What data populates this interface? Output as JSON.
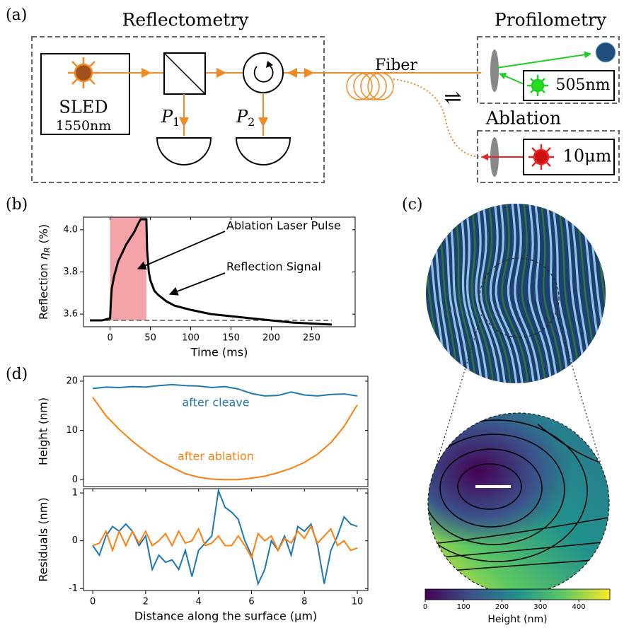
{
  "panel_labels": [
    "(a)",
    "(b)",
    "(c)",
    "(d)"
  ],
  "diagram": {
    "reflectometry": "Reflectometry",
    "profilometry": "Profilometry",
    "ablation": "Ablation",
    "fiber": "Fiber",
    "sled": "SLED",
    "sled_wavelength": "1550nm",
    "p1": {
      "symbol": "P",
      "subscript": "1"
    },
    "p2": {
      "symbol": "P",
      "subscript": "2"
    },
    "green_laser": "505nm",
    "red_laser": "10μm"
  },
  "chart_data": [
    {
      "type": "line",
      "xlabel": "Time (ms)",
      "ylabel": {
        "text": "Reflection ",
        "symbol": "η",
        "subscript": "R",
        "unit": " (%)"
      },
      "xlim": [
        -33,
        304
      ],
      "ylim": [
        3.54,
        4.06
      ],
      "xticks": [
        0,
        50,
        100,
        150,
        200,
        250
      ],
      "yticks": [
        3.6,
        3.8,
        {
          "value": 4,
          "label": "4.0"
        }
      ],
      "span": {
        "x": [
          0,
          45
        ],
        "y": [
          3.57,
          4.06
        ],
        "color": "#f4a3a8"
      },
      "annotations": [
        "Ablation Laser Pulse",
        "Reflection Signal"
      ],
      "series": [
        {
          "color": "#808080",
          "dash": true,
          "x": [
            -25,
            275
          ],
          "values": [
            3.57,
            3.57
          ]
        },
        {
          "color": "#000000",
          "x": [
            -25,
            -10,
            0,
            1,
            2,
            5,
            10,
            15,
            20,
            25,
            30,
            35,
            38,
            42,
            45,
            46,
            48,
            50,
            55,
            60,
            70,
            80,
            100,
            125,
            150,
            175,
            200,
            225,
            250,
            275
          ],
          "values": [
            3.57,
            3.57,
            3.58,
            3.66,
            3.72,
            3.78,
            3.85,
            3.89,
            3.93,
            3.96,
            3.99,
            4.03,
            4.05,
            4.05,
            4.05,
            3.9,
            3.8,
            3.76,
            3.71,
            3.69,
            3.66,
            3.64,
            3.62,
            3.6,
            3.59,
            3.58,
            3.57,
            3.56,
            3.555,
            3.55
          ]
        }
      ]
    },
    {
      "type": "line",
      "ylabel": "Height (nm)",
      "xlim": [
        -0.35,
        10.4
      ],
      "ylim": [
        -1.4,
        21
      ],
      "yticks": [
        0,
        10,
        20
      ],
      "x": [
        0,
        0.5,
        1,
        1.5,
        2,
        2.5,
        3,
        3.5,
        4,
        4.5,
        5,
        5.5,
        6,
        6.5,
        7,
        7.5,
        8,
        8.5,
        9,
        9.5,
        10
      ],
      "series": [
        {
          "name": "after cleave",
          "color": "#1f77b4",
          "values": [
            18.5,
            18.8,
            18.7,
            18.9,
            18.8,
            19.1,
            19.3,
            19.1,
            19.0,
            18.7,
            18.9,
            18.4,
            17.5,
            17.0,
            17.1,
            17.8,
            17.2,
            17.0,
            17.3,
            17.4,
            17.0
          ]
        },
        {
          "name": "after ablation",
          "color": "#ff7f0e",
          "values": [
            16.7,
            13.0,
            10.2,
            7.8,
            5.7,
            3.9,
            2.5,
            1.2,
            0.5,
            0.1,
            0.0,
            0.0,
            0.3,
            0.7,
            1.4,
            2.3,
            3.5,
            5.2,
            7.5,
            10.8,
            15.2
          ]
        }
      ]
    },
    {
      "type": "line",
      "xlabel": "Distance along the surface (μm)",
      "ylabel": "Residuals (nm)",
      "xlim": [
        -0.35,
        10.4
      ],
      "ylim": [
        -1.04,
        1.09
      ],
      "xticks": [
        0,
        2,
        4,
        6,
        8,
        10
      ],
      "yticks": [
        -1,
        0,
        1
      ],
      "x": [
        0,
        0.25,
        0.5,
        0.75,
        1,
        1.25,
        1.5,
        1.75,
        2,
        2.25,
        2.5,
        2.75,
        3,
        3.25,
        3.5,
        3.75,
        4,
        4.25,
        4.5,
        4.75,
        5,
        5.25,
        5.5,
        5.75,
        6,
        6.25,
        6.5,
        6.75,
        7,
        7.25,
        7.5,
        7.75,
        8,
        8.25,
        8.5,
        8.75,
        9,
        9.25,
        9.5,
        9.75,
        10
      ],
      "series": [
        {
          "color": "#1f77b4",
          "values": [
            -0.1,
            -0.3,
            0.1,
            0.3,
            0.2,
            0.35,
            0.2,
            -0.1,
            0.1,
            -0.6,
            -0.3,
            -0.45,
            -0.4,
            -0.6,
            -0.2,
            -0.75,
            -0.2,
            -0.05,
            0.1,
            1.05,
            0.7,
            0.6,
            0.45,
            0.0,
            -0.3,
            -0.9,
            -0.6,
            0.0,
            -0.2,
            0.1,
            -0.3,
            0.3,
            0.2,
            0.35,
            -0.1,
            -0.9,
            -0.2,
            0.1,
            0.5,
            0.35,
            0.3
          ]
        },
        {
          "color": "#ff7f0e",
          "values": [
            -0.1,
            -0.05,
            0.2,
            -0.2,
            0.2,
            -0.1,
            0.2,
            -0.05,
            0.2,
            -0.1,
            0.0,
            0.15,
            -0.1,
            0.2,
            -0.05,
            0.0,
            0.25,
            -0.1,
            -0.05,
            0.1,
            -0.1,
            -0.1,
            0.1,
            -0.1,
            -0.35,
            0.15,
            0.0,
            0.1,
            -0.2,
            0.05,
            -0.05,
            0.2,
            0.05,
            0.3,
            -0.05,
            0.1,
            0.25,
            -0.1,
            0.0,
            -0.2,
            -0.15
          ]
        }
      ]
    },
    {
      "type": "colorbar",
      "xlabel": "Height (nm)",
      "xlim": [
        0,
        481
      ],
      "xticks": [
        0,
        100,
        200,
        300,
        400
      ],
      "colormap": [
        "#440154",
        "#3b528b",
        "#21918c",
        "#5ec962",
        "#fde725"
      ]
    }
  ]
}
